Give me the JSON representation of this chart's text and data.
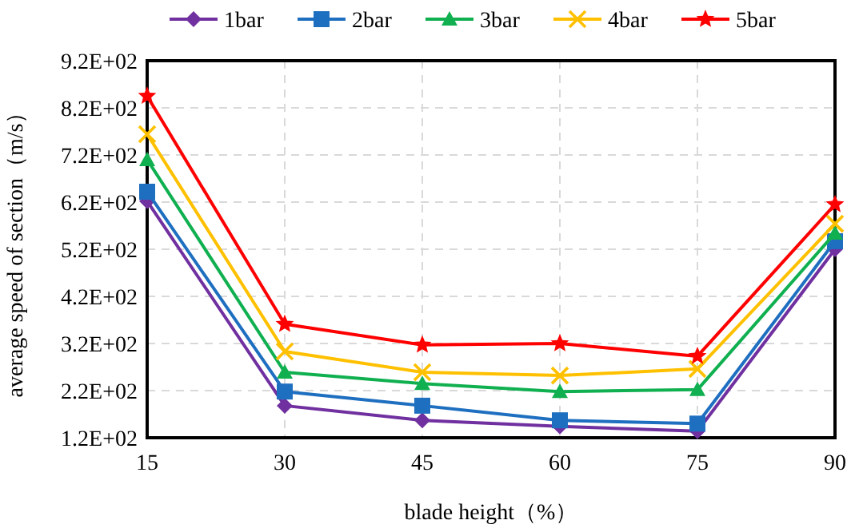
{
  "chart_data": {
    "type": "line",
    "xlabel": "blade height（%）",
    "ylabel": "average speed of section（m/s）",
    "x": [
      15,
      30,
      45,
      60,
      75,
      90
    ],
    "xlim": [
      15,
      90
    ],
    "xticks": [
      15,
      30,
      45,
      60,
      75,
      90
    ],
    "ylim": [
      120,
      920
    ],
    "yticks": [
      {
        "value": 120,
        "label": "1.2E+02"
      },
      {
        "value": 220,
        "label": "2.2E+02"
      },
      {
        "value": 320,
        "label": "3.2E+02"
      },
      {
        "value": 420,
        "label": "4.2E+02"
      },
      {
        "value": 520,
        "label": "5.2E+02"
      },
      {
        "value": 620,
        "label": "6.2E+02"
      },
      {
        "value": 720,
        "label": "7.2E+02"
      },
      {
        "value": 820,
        "label": "8.2E+02"
      },
      {
        "value": 920,
        "label": "9.2E+02"
      }
    ],
    "grid": true,
    "legend": "top",
    "line_style": "solid",
    "series": [
      {
        "name": "1bar",
        "color": "#7030a0",
        "marker": "diamond",
        "values": [
          622,
          188,
          157,
          144,
          134,
          520
        ]
      },
      {
        "name": "2bar",
        "color": "#1f6fc0",
        "marker": "square",
        "values": [
          642,
          218,
          188,
          157,
          150,
          537
        ]
      },
      {
        "name": "3bar",
        "color": "#10b050",
        "marker": "triangle",
        "values": [
          710,
          259,
          235,
          218,
          222,
          554
        ]
      },
      {
        "name": "4bar",
        "color": "#ffc000",
        "marker": "cross",
        "values": [
          764,
          303,
          259,
          252,
          266,
          574
        ]
      },
      {
        "name": "5bar",
        "color": "#ff0000",
        "marker": "star",
        "values": [
          845,
          361,
          317,
          320,
          293,
          615
        ]
      }
    ]
  }
}
